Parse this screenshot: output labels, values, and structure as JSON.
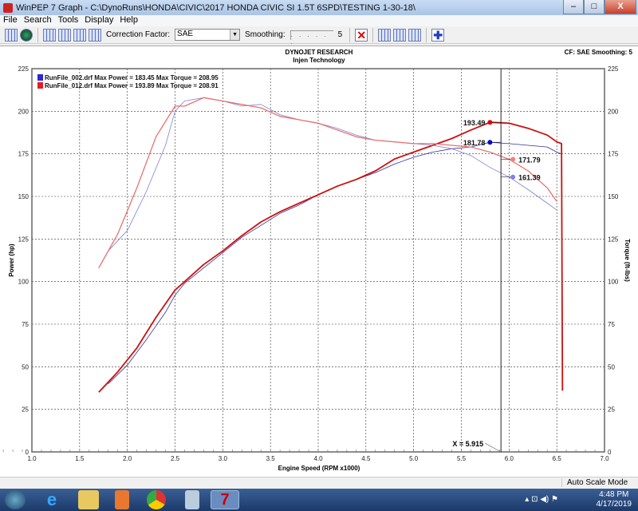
{
  "window": {
    "title": "WinPEP 7    Graph - C:\\DynoRuns\\HONDA\\CIVIC\\2017 HONDA CIVIC SI 1.5T 6SPD\\TESTING 1-30-18\\",
    "min": "–",
    "max": "□",
    "close": "X"
  },
  "menu": [
    "File",
    "Search",
    "Tools",
    "Display",
    "Help"
  ],
  "toolbar": {
    "correction_label": "Correction Factor:",
    "correction_value": "SAE",
    "smoothing_label": "Smoothing:",
    "smoothing_ticks": ". . . . . .",
    "smoothing_value": "5"
  },
  "chart_header": {
    "title": "DYNOJET RESEARCH",
    "subtitle": "Injen Technology",
    "right": "CF: SAE  Smoothing: 5"
  },
  "status": {
    "mode": "Auto Scale Mode"
  },
  "taskbar": {
    "time": "4:48 PM",
    "date": "4/17/2019",
    "apps": [
      "start",
      "internet-explorer",
      "file-explorer",
      "media-player",
      "chrome",
      "calculator",
      "winpep"
    ]
  },
  "chart_data": {
    "type": "line",
    "xlabel": "Engine Speed (RPM x1000)",
    "ylabel": "Power (hp)",
    "y2label": "Torque (ft-lbs)",
    "xlim": [
      1.0,
      7.0
    ],
    "ylim": [
      0,
      225
    ],
    "y2lim": [
      0,
      225
    ],
    "xticks": [
      "1.0",
      "1.5",
      "2.0",
      "2.5",
      "3.0",
      "3.5",
      "4.0",
      "4.5",
      "5.0",
      "5.5",
      "6.0",
      "6.5",
      "7.0"
    ],
    "yticks": [
      "0",
      "25",
      "50",
      "75",
      "100",
      "125",
      "150",
      "175",
      "200",
      "225"
    ],
    "grid": true,
    "legend_position": "top-left",
    "legend": [
      {
        "text": "RunFile_002.drf Max Power = 183.45 Max Torque = 208.95",
        "color": "#2a2ad0"
      },
      {
        "text": "RunFile_012.drf Max Power = 193.89 Max Torque = 208.91",
        "color": "#e02020"
      }
    ],
    "cursor": {
      "x": 5.915,
      "label": "X = 5.915"
    },
    "series": [
      {
        "name": "RunFile_002.drf power",
        "color": "#3030a0",
        "width": 0.8,
        "x": [
          1.8,
          2.0,
          2.2,
          2.4,
          2.5,
          2.6,
          2.8,
          3.0,
          3.2,
          3.4,
          3.6,
          3.8,
          4.0,
          4.2,
          4.4,
          4.6,
          4.8,
          5.0,
          5.2,
          5.4,
          5.6,
          5.8,
          6.0,
          6.2,
          6.4,
          6.5,
          6.55,
          6.56
        ],
        "y": [
          40,
          51,
          66,
          82,
          92,
          99,
          108,
          117,
          126,
          133,
          140,
          145,
          151,
          156,
          160,
          164,
          169,
          173,
          176,
          178,
          179,
          181.8,
          181,
          180,
          179,
          176,
          175,
          45
        ]
      },
      {
        "name": "RunFile_012.drf power",
        "color": "#cc1010",
        "width": 1.8,
        "x": [
          1.7,
          1.9,
          2.1,
          2.3,
          2.5,
          2.6,
          2.8,
          3.0,
          3.2,
          3.4,
          3.6,
          3.8,
          4.0,
          4.2,
          4.4,
          4.6,
          4.8,
          5.0,
          5.2,
          5.4,
          5.6,
          5.8,
          6.0,
          6.2,
          6.4,
          6.5,
          6.55,
          6.56
        ],
        "y": [
          35,
          47,
          61,
          79,
          95,
          100,
          110,
          118,
          127,
          135,
          141,
          146,
          151,
          156,
          160,
          165,
          172,
          176,
          180,
          184,
          189,
          193.5,
          193,
          190,
          186,
          182,
          181,
          36
        ]
      },
      {
        "name": "RunFile_002.drf torque",
        "color": "#8080d0",
        "width": 0.8,
        "x": [
          1.8,
          2.0,
          2.2,
          2.4,
          2.5,
          2.6,
          2.8,
          3.0,
          3.2,
          3.4,
          3.6,
          3.8,
          4.0,
          4.2,
          4.4,
          4.6,
          4.8,
          5.0,
          5.2,
          5.4,
          5.6,
          5.8,
          6.0,
          6.2,
          6.4,
          6.5
        ],
        "y": [
          118,
          130,
          153,
          180,
          200,
          206,
          208,
          206,
          203,
          204,
          198,
          195,
          193,
          190,
          186,
          183,
          182,
          181,
          180,
          178,
          174,
          167,
          161.4,
          154,
          146,
          142
        ]
      },
      {
        "name": "RunFile_012.drf torque",
        "color": "#e87070",
        "width": 1.3,
        "x": [
          1.7,
          1.9,
          2.1,
          2.3,
          2.5,
          2.6,
          2.8,
          3.0,
          3.2,
          3.4,
          3.6,
          3.8,
          4.0,
          4.2,
          4.4,
          4.6,
          4.8,
          5.0,
          5.2,
          5.4,
          5.6,
          5.8,
          6.0,
          6.2,
          6.4,
          6.5
        ],
        "y": [
          108,
          128,
          155,
          185,
          203,
          203,
          208,
          206,
          204,
          202,
          197,
          195,
          193,
          189,
          185,
          183,
          182,
          181,
          181,
          180,
          179,
          176,
          171.8,
          165,
          155,
          147
        ]
      }
    ],
    "markers": [
      {
        "x": 5.8,
        "y": 193.49,
        "label": "193.49",
        "color": "#e00000",
        "side": "left"
      },
      {
        "x": 5.8,
        "y": 181.78,
        "label": "181.78",
        "color": "#0000d0",
        "side": "left"
      },
      {
        "x": 6.04,
        "y": 171.79,
        "label": "171.79",
        "color": "#f08080",
        "side": "right"
      },
      {
        "x": 6.04,
        "y": 161.39,
        "label": "161.39",
        "color": "#8080f0",
        "side": "right"
      }
    ]
  }
}
